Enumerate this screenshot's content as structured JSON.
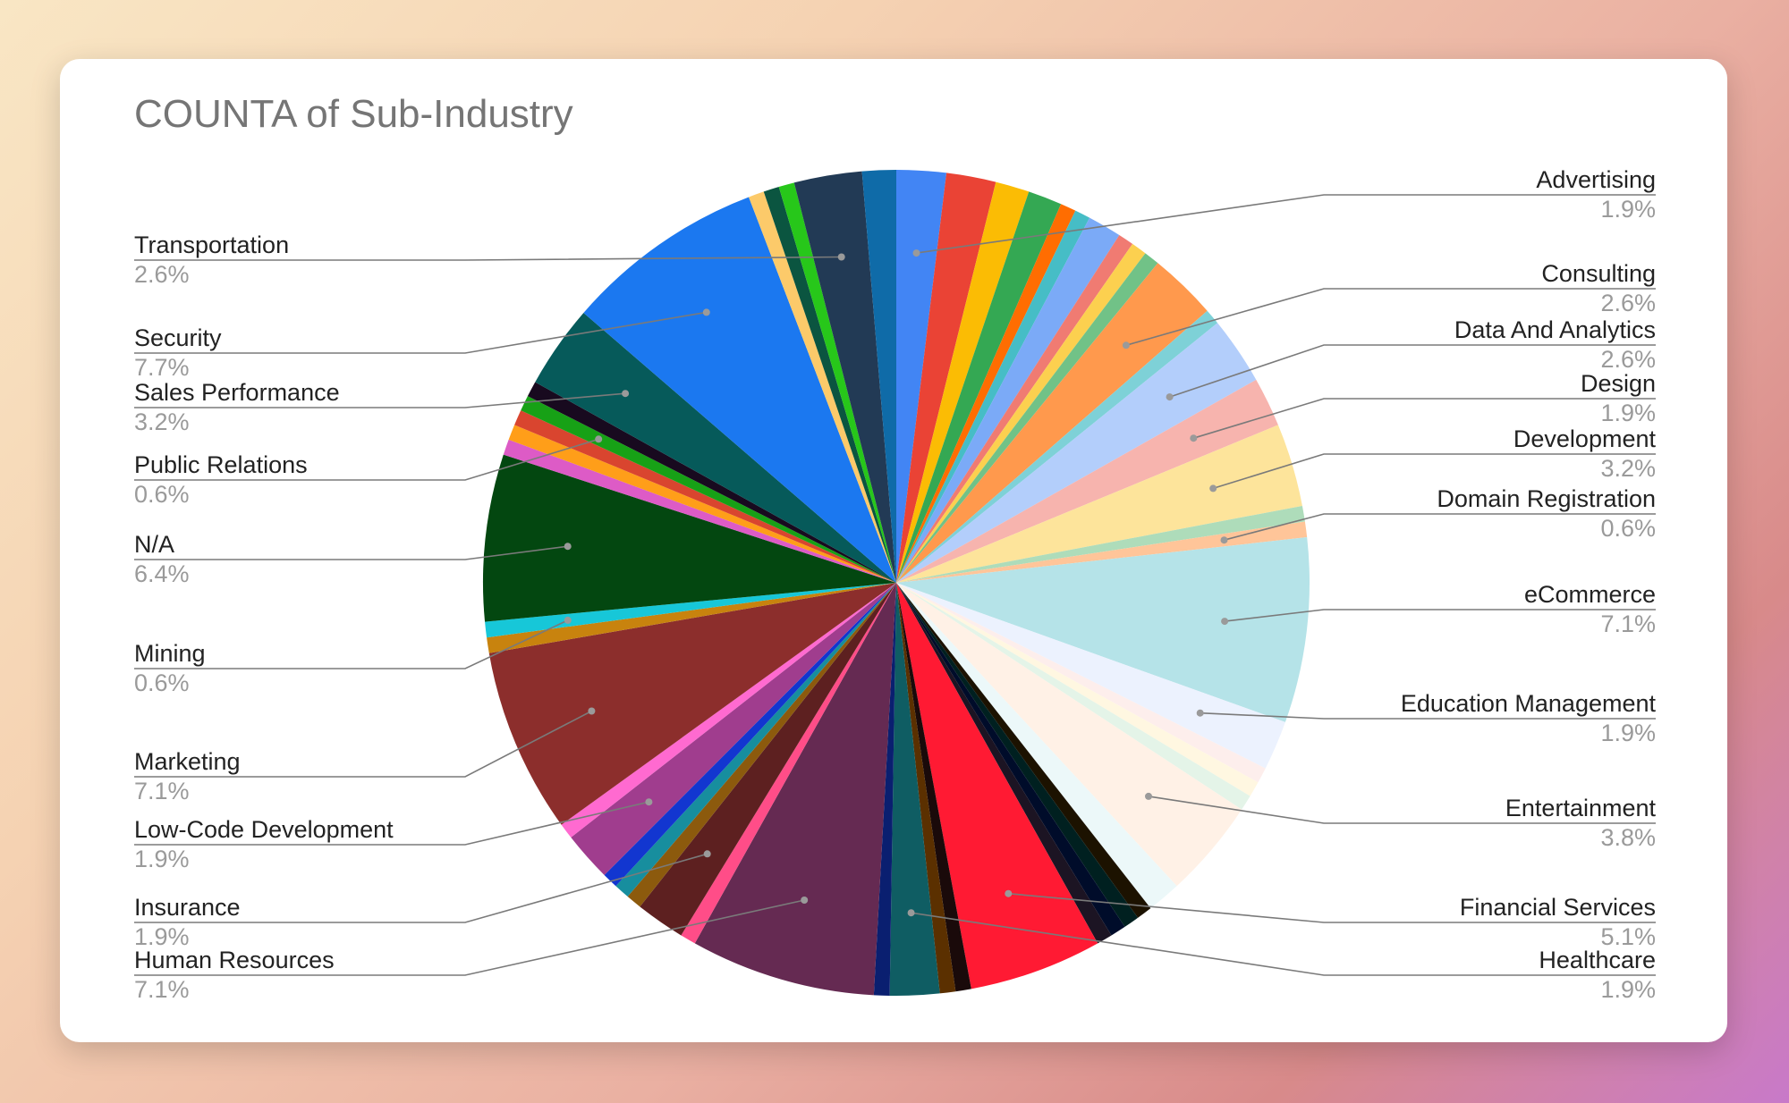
{
  "chart_data": {
    "type": "pie",
    "title": "COUNTA of Sub-Industry",
    "slices": [
      {
        "name": "Advertising",
        "value": 1.9,
        "color": "#4285f4"
      },
      {
        "name": "",
        "value": 1.9,
        "color": "#ea4335"
      },
      {
        "name": "",
        "value": 1.3,
        "color": "#fbbc04"
      },
      {
        "name": "",
        "value": 1.3,
        "color": "#34a853"
      },
      {
        "name": "",
        "value": 0.6,
        "color": "#ff6d01"
      },
      {
        "name": "",
        "value": 0.6,
        "color": "#46bdc6"
      },
      {
        "name": "",
        "value": 1.3,
        "color": "#7baaf7"
      },
      {
        "name": "",
        "value": 0.6,
        "color": "#f07b72"
      },
      {
        "name": "",
        "value": 0.6,
        "color": "#fcd04f"
      },
      {
        "name": "",
        "value": 0.6,
        "color": "#71c287"
      },
      {
        "name": "Consulting",
        "value": 2.6,
        "color": "#ff994d"
      },
      {
        "name": "",
        "value": 0.6,
        "color": "#7ed1d7"
      },
      {
        "name": "Data And Analytics",
        "value": 2.6,
        "color": "#b3cefb"
      },
      {
        "name": "Design",
        "value": 1.9,
        "color": "#f7b4ae"
      },
      {
        "name": "Development",
        "value": 3.2,
        "color": "#fde49b"
      },
      {
        "name": "",
        "value": 0.6,
        "color": "#aedcba"
      },
      {
        "name": "Domain Registration",
        "value": 0.6,
        "color": "#ffc599"
      },
      {
        "name": "eCommerce",
        "value": 7.1,
        "color": "#b5e3e8"
      },
      {
        "name": "Education Management",
        "value": 1.9,
        "color": "#ecf2fe"
      },
      {
        "name": "",
        "value": 0.6,
        "color": "#fdeeec"
      },
      {
        "name": "",
        "value": 0.6,
        "color": "#fff7e1"
      },
      {
        "name": "",
        "value": 0.6,
        "color": "#e4f4e8"
      },
      {
        "name": "Entertainment",
        "value": 3.8,
        "color": "#fff1e6"
      },
      {
        "name": "",
        "value": 1.3,
        "color": "#ecf8f9"
      },
      {
        "name": "",
        "value": 0.6,
        "color": "#1c1200"
      },
      {
        "name": "",
        "value": 0.6,
        "color": "#002020"
      },
      {
        "name": "",
        "value": 0.6,
        "color": "#000c2a"
      },
      {
        "name": "",
        "value": 0.6,
        "color": "#1c1423"
      },
      {
        "name": "Financial Services",
        "value": 5.1,
        "color": "#ff1a33"
      },
      {
        "name": "",
        "value": 0.6,
        "color": "#1a0a0a"
      },
      {
        "name": "",
        "value": 0.6,
        "color": "#5b3000"
      },
      {
        "name": "Healthcare",
        "value": 1.9,
        "color": "#0f5d63"
      },
      {
        "name": "",
        "value": 0.6,
        "color": "#0a1f70"
      },
      {
        "name": "Human Resources",
        "value": 7.1,
        "color": "#652a52"
      },
      {
        "name": "",
        "value": 0.6,
        "color": "#ff4d88"
      },
      {
        "name": "Insurance",
        "value": 1.9,
        "color": "#5d2020"
      },
      {
        "name": "",
        "value": 0.6,
        "color": "#8c5a0d"
      },
      {
        "name": "",
        "value": 0.6,
        "color": "#178e9e"
      },
      {
        "name": "",
        "value": 0.6,
        "color": "#1236d0"
      },
      {
        "name": "Low-Code Development",
        "value": 1.9,
        "color": "#a03d8e"
      },
      {
        "name": "",
        "value": 0.6,
        "color": "#ff6ad0"
      },
      {
        "name": "Marketing",
        "value": 7.1,
        "color": "#8c2e2c"
      },
      {
        "name": "",
        "value": 0.6,
        "color": "#c8830e"
      },
      {
        "name": "Mining",
        "value": 0.6,
        "color": "#17c7d8"
      },
      {
        "name": "N/A",
        "value": 6.4,
        "color": "#034710"
      },
      {
        "name": "",
        "value": 0.6,
        "color": "#dd5bc6"
      },
      {
        "name": "",
        "value": 0.6,
        "color": "#ff9e19"
      },
      {
        "name": "",
        "value": 0.6,
        "color": "#d9452f"
      },
      {
        "name": "Public Relations",
        "value": 0.6,
        "color": "#17a116"
      },
      {
        "name": "",
        "value": 0.6,
        "color": "#180a1f"
      },
      {
        "name": "Sales Performance",
        "value": 3.2,
        "color": "#065a5a"
      },
      {
        "name": "Security",
        "value": 7.7,
        "color": "#1b78f0"
      },
      {
        "name": "",
        "value": 0.6,
        "color": "#fcca6a"
      },
      {
        "name": "",
        "value": 0.6,
        "color": "#0b5540"
      },
      {
        "name": "",
        "value": 0.6,
        "color": "#27c71a"
      },
      {
        "name": "Transportation",
        "value": 2.6,
        "color": "#223a55"
      },
      {
        "name": "",
        "value": 1.3,
        "color": "#0f6ba8"
      }
    ],
    "labels": [
      {
        "name": "Advertising",
        "pct": "1.9%",
        "side": "right"
      },
      {
        "name": "Consulting",
        "pct": "2.6%",
        "side": "right"
      },
      {
        "name": "Data And Analytics",
        "pct": "2.6%",
        "side": "right"
      },
      {
        "name": "Design",
        "pct": "1.9%",
        "side": "right"
      },
      {
        "name": "Development",
        "pct": "3.2%",
        "side": "right"
      },
      {
        "name": "Domain Registration",
        "pct": "0.6%",
        "side": "right"
      },
      {
        "name": "eCommerce",
        "pct": "7.1%",
        "side": "right"
      },
      {
        "name": "Education Management",
        "pct": "1.9%",
        "side": "right"
      },
      {
        "name": "Entertainment",
        "pct": "3.8%",
        "side": "right"
      },
      {
        "name": "Financial Services",
        "pct": "5.1%",
        "side": "right"
      },
      {
        "name": "Healthcare",
        "pct": "1.9%",
        "side": "right"
      },
      {
        "name": "Human Resources",
        "pct": "7.1%",
        "side": "left"
      },
      {
        "name": "Insurance",
        "pct": "1.9%",
        "side": "left"
      },
      {
        "name": "Low-Code Development",
        "pct": "1.9%",
        "side": "left"
      },
      {
        "name": "Marketing",
        "pct": "7.1%",
        "side": "left"
      },
      {
        "name": "Mining",
        "pct": "0.6%",
        "side": "left"
      },
      {
        "name": "N/A",
        "pct": "6.4%",
        "side": "left"
      },
      {
        "name": "Public Relations",
        "pct": "0.6%",
        "side": "left"
      },
      {
        "name": "Sales Performance",
        "pct": "3.2%",
        "side": "left"
      },
      {
        "name": "Security",
        "pct": "7.7%",
        "side": "left"
      },
      {
        "name": "Transportation",
        "pct": "2.6%",
        "side": "left"
      }
    ]
  }
}
